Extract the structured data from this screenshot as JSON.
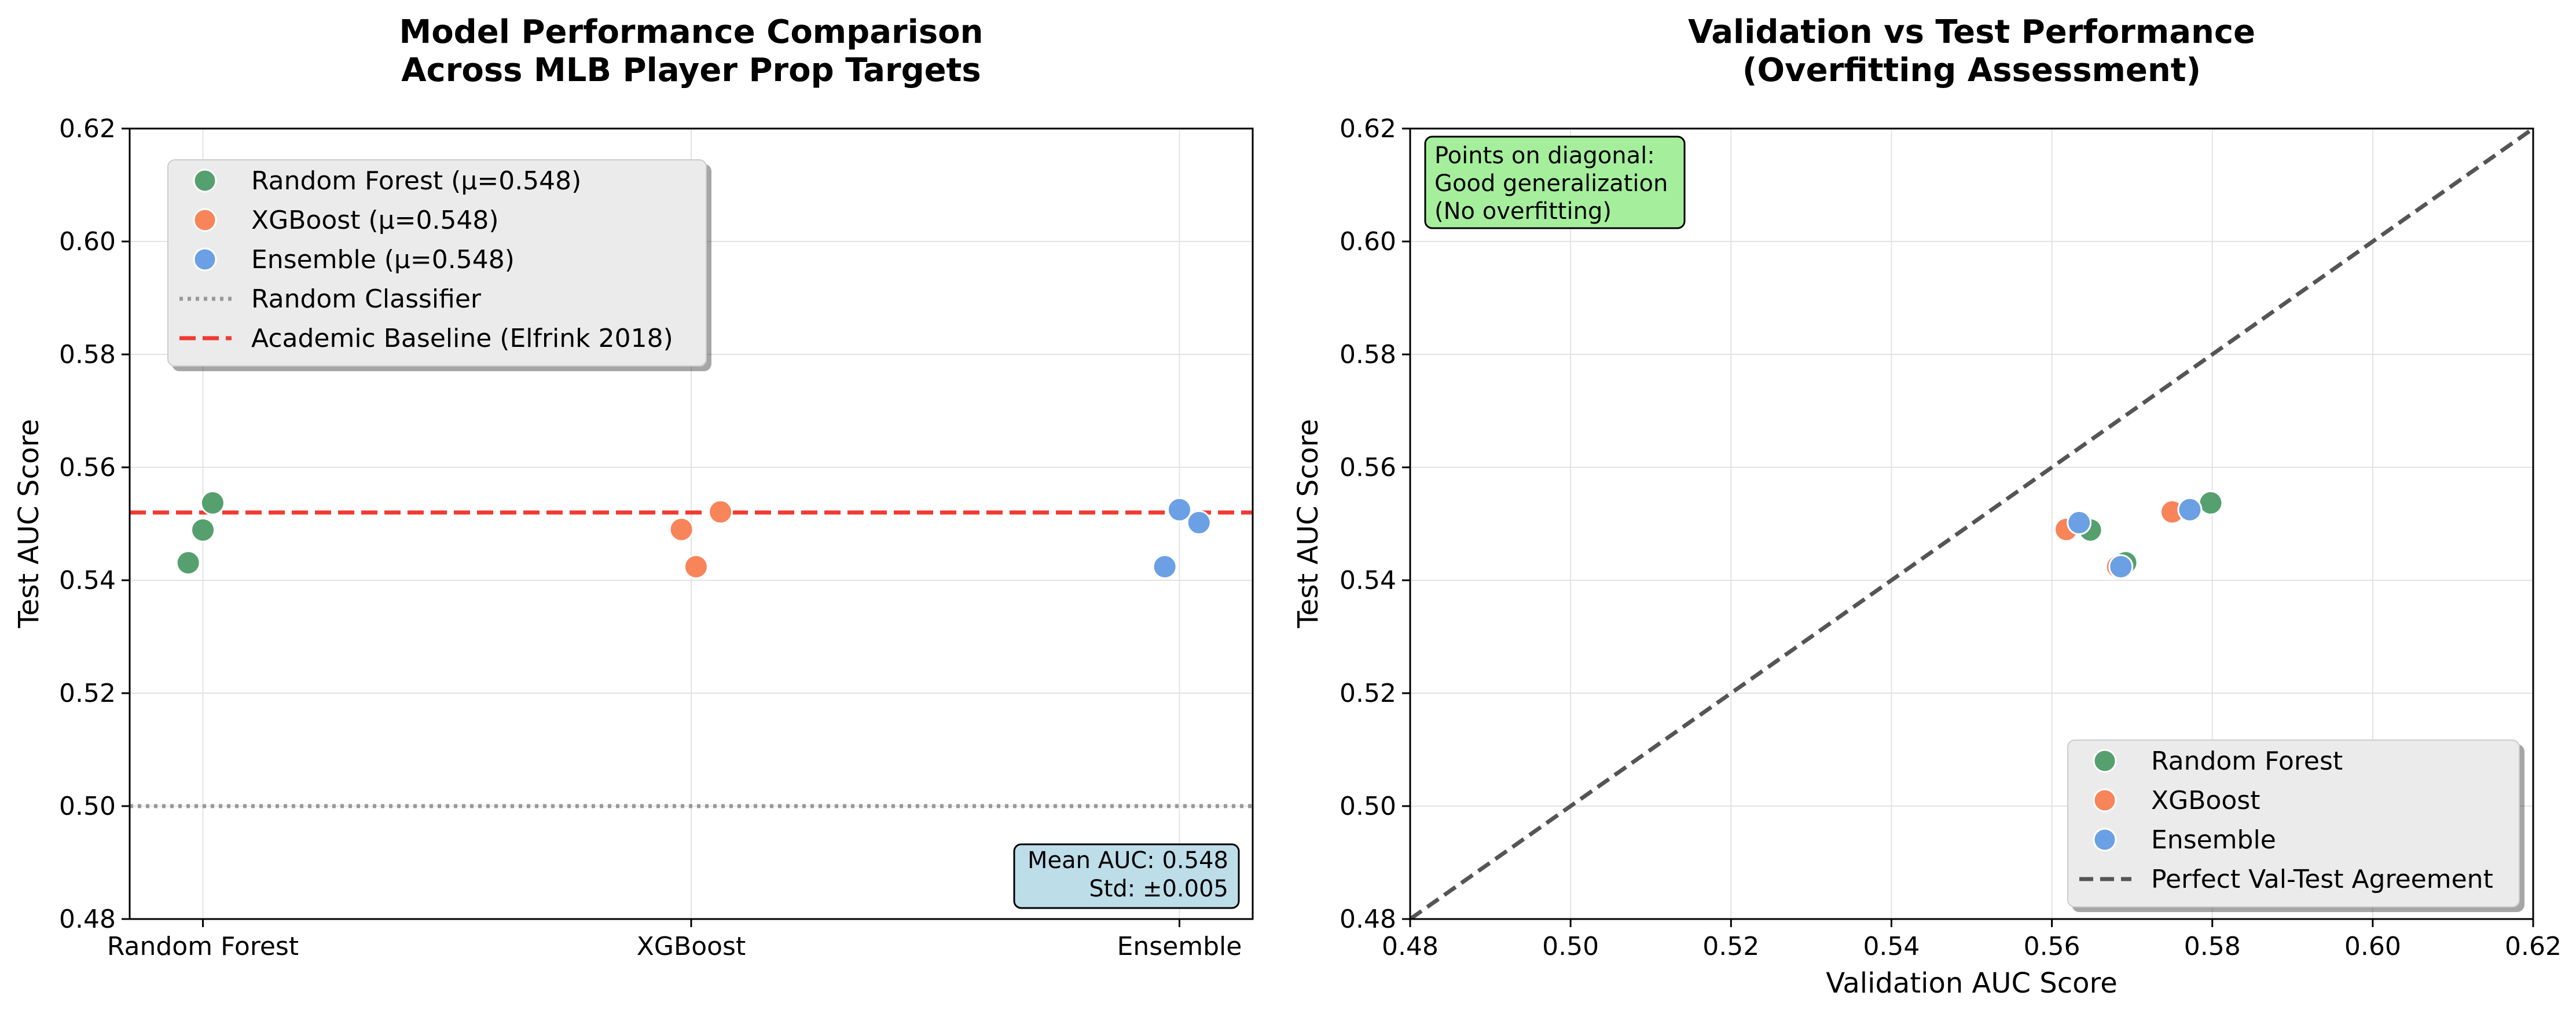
{
  "chart_data": [
    {
      "type": "scatter",
      "title": [
        "Model Performance Comparison",
        "Across MLB Player Prop Targets"
      ],
      "xlabel": "",
      "ylabel": "Test AUC Score",
      "categories": [
        "Random Forest",
        "XGBoost",
        "Ensemble"
      ],
      "ylim": [
        0.48,
        0.62
      ],
      "yticks": [
        "0.48",
        "0.50",
        "0.52",
        "0.54",
        "0.56",
        "0.58",
        "0.60",
        "0.62"
      ],
      "grid": true,
      "legend_position": "upper-left",
      "series": [
        {
          "name": "Random Forest (μ=0.548)",
          "color": "#55a06e",
          "points": [
            {
              "category": "Random Forest",
              "offset": -0.03,
              "y": 0.5431
            },
            {
              "category": "Random Forest",
              "offset": 0.0,
              "y": 0.5489
            },
            {
              "category": "Random Forest",
              "offset": 0.02,
              "y": 0.5537
            }
          ]
        },
        {
          "name": "XGBoost (μ=0.548)",
          "color": "#f8845a",
          "points": [
            {
              "category": "XGBoost",
              "offset": -0.02,
              "y": 0.549
            },
            {
              "category": "XGBoost",
              "offset": 0.01,
              "y": 0.5424
            },
            {
              "category": "XGBoost",
              "offset": 0.06,
              "y": 0.5521
            }
          ]
        },
        {
          "name": "Ensemble (μ=0.548)",
          "color": "#6ca0e4",
          "points": [
            {
              "category": "Ensemble",
              "offset": -0.03,
              "y": 0.5424
            },
            {
              "category": "Ensemble",
              "offset": 0.0,
              "y": 0.5525
            },
            {
              "category": "Ensemble",
              "offset": 0.04,
              "y": 0.5502
            }
          ]
        }
      ],
      "reference_lines": [
        {
          "name": "Random Classifier",
          "y": 0.5,
          "color": "#999999",
          "style": "dotted"
        },
        {
          "name": "Academic Baseline (Elfrink 2018)",
          "y": 0.552,
          "color": "#f03a32",
          "style": "dashed"
        }
      ],
      "annotation": {
        "lines": [
          "Mean AUC: 0.548",
          "Std: ±0.005"
        ],
        "position": "lower-right",
        "color": "#bddde9"
      }
    },
    {
      "type": "scatter",
      "title": [
        "Validation vs Test Performance",
        "(Overfitting Assessment)"
      ],
      "xlabel": "Validation AUC Score",
      "ylabel": "Test AUC Score",
      "xlim": [
        0.48,
        0.62
      ],
      "ylim": [
        0.48,
        0.62
      ],
      "xticks": [
        "0.48",
        "0.50",
        "0.52",
        "0.54",
        "0.56",
        "0.58",
        "0.60",
        "0.62"
      ],
      "yticks": [
        "0.48",
        "0.50",
        "0.52",
        "0.54",
        "0.56",
        "0.58",
        "0.60",
        "0.62"
      ],
      "grid": true,
      "legend_position": "lower-right",
      "series": [
        {
          "name": "Random Forest",
          "color": "#55a06e",
          "points": [
            {
              "x": 0.5648,
              "y": 0.5489
            },
            {
              "x": 0.5692,
              "y": 0.5431
            },
            {
              "x": 0.5798,
              "y": 0.5537
            }
          ]
        },
        {
          "name": "XGBoost",
          "color": "#f8845a",
          "points": [
            {
              "x": 0.5618,
              "y": 0.549
            },
            {
              "x": 0.5682,
              "y": 0.5424
            },
            {
              "x": 0.575,
              "y": 0.5521
            }
          ]
        },
        {
          "name": "Ensemble",
          "color": "#6ca0e4",
          "points": [
            {
              "x": 0.5634,
              "y": 0.5502
            },
            {
              "x": 0.5686,
              "y": 0.5424
            },
            {
              "x": 0.5772,
              "y": 0.5525
            }
          ]
        }
      ],
      "reference_lines": [
        {
          "name": "Perfect Val-Test Agreement",
          "from": [
            0.48,
            0.48
          ],
          "to": [
            0.62,
            0.62
          ],
          "color": "#555555",
          "style": "dashed"
        }
      ],
      "annotation": {
        "lines": [
          "Points on diagonal:",
          "Good generalization",
          "(No overfitting)"
        ],
        "position": "upper-left",
        "color": "#a5ef9c"
      }
    }
  ]
}
